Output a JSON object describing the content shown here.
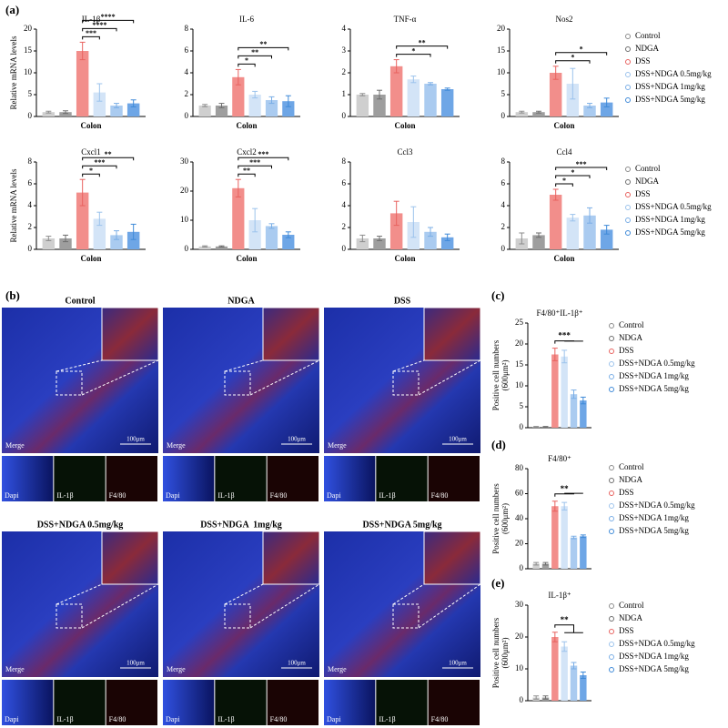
{
  "panel_labels": [
    "(a)",
    "(b)",
    "(c)",
    "(d)",
    "(e)"
  ],
  "legend": [
    {
      "name": "Control",
      "color": "#8c8c8c",
      "fill": "#cfcfcf"
    },
    {
      "name": "NDGA",
      "color": "#6e6e6e",
      "fill": "#9e9e9e"
    },
    {
      "name": "DSS",
      "color": "#e8625f",
      "fill": "#f28e8b"
    },
    {
      "name": "DSS+NDGA 0.5mg/kg",
      "color": "#9cc3ec",
      "fill": "#d3e4f7"
    },
    {
      "name": "DSS+NDGA 1mg/kg",
      "color": "#7aaee6",
      "fill": "#aacbf0"
    },
    {
      "name": "DSS+NDGA 5mg/kg",
      "color": "#3f8ad8",
      "fill": "#6ea6e6"
    }
  ],
  "chart_data": [
    {
      "type": "bar",
      "title": "IL-1β",
      "xlabel": "Colon",
      "ylabel": [
        "Relative mRNA levels"
      ],
      "values": [
        1,
        1,
        15,
        5.5,
        2.5,
        3
      ],
      "errors": [
        0.2,
        0.3,
        2,
        2,
        0.5,
        0.8
      ],
      "ylim": [
        0,
        20
      ],
      "yticks": [
        0,
        5,
        10,
        15,
        20
      ],
      "significance": [
        null,
        null,
        null,
        "***",
        "****",
        "****"
      ]
    },
    {
      "type": "bar",
      "title": "IL-6",
      "xlabel": "Colon",
      "values": [
        1,
        1,
        3.6,
        2,
        1.5,
        1.4
      ],
      "errors": [
        0.1,
        0.2,
        0.7,
        0.3,
        0.3,
        0.5
      ],
      "ylim": [
        0,
        8
      ],
      "yticks": [
        0,
        2,
        4,
        6,
        8
      ],
      "significance": [
        null,
        null,
        null,
        "*",
        "**",
        "**"
      ]
    },
    {
      "type": "bar",
      "title": "TNF-α",
      "xlabel": "Colon",
      "values": [
        1,
        1,
        2.3,
        1.7,
        1.5,
        1.25
      ],
      "errors": [
        0.05,
        0.2,
        0.3,
        0.15,
        0.05,
        0.05
      ],
      "ylim": [
        0,
        4
      ],
      "yticks": [
        0,
        1,
        2,
        3,
        4
      ],
      "significance": [
        null,
        null,
        null,
        null,
        "*",
        "**"
      ]
    },
    {
      "type": "bar",
      "title": "Nos2",
      "xlabel": "Colon",
      "values": [
        1,
        1,
        10,
        7.5,
        2.5,
        3.2
      ],
      "errors": [
        0.2,
        0.2,
        1.5,
        3.5,
        0.5,
        1
      ],
      "ylim": [
        0,
        20
      ],
      "yticks": [
        0,
        5,
        10,
        15,
        20
      ],
      "significance": [
        null,
        null,
        null,
        null,
        "*",
        "*"
      ]
    },
    {
      "type": "bar",
      "title": "Cxcl1",
      "xlabel": "Colon",
      "ylabel": [
        "Relative mRNA levels"
      ],
      "values": [
        1,
        1,
        5.2,
        2.8,
        1.3,
        1.6
      ],
      "errors": [
        0.2,
        0.3,
        1.2,
        0.6,
        0.4,
        0.7
      ],
      "ylim": [
        0,
        8
      ],
      "yticks": [
        0,
        2,
        4,
        6,
        8
      ],
      "significance": [
        null,
        null,
        null,
        "*",
        "***",
        "**"
      ]
    },
    {
      "type": "bar",
      "title": "Cxcl2",
      "xlabel": "Colon",
      "values": [
        1,
        1,
        21,
        10,
        8,
        5
      ],
      "errors": [
        0.2,
        0.2,
        3,
        4,
        0.8,
        1
      ],
      "ylim": [
        0,
        30
      ],
      "yticks": [
        0,
        10,
        20,
        30
      ],
      "significance": [
        null,
        null,
        null,
        "**",
        "***",
        "***"
      ]
    },
    {
      "type": "bar",
      "title": "Ccl3",
      "xlabel": "Colon",
      "values": [
        1,
        1,
        3.3,
        2.5,
        1.6,
        1.1
      ],
      "errors": [
        0.3,
        0.2,
        1.1,
        1.4,
        0.4,
        0.3
      ],
      "ylim": [
        0,
        8
      ],
      "yticks": [
        0,
        2,
        4,
        6,
        8
      ],
      "significance": [
        null,
        null,
        null,
        null,
        null,
        null
      ]
    },
    {
      "type": "bar",
      "title": "Ccl4",
      "xlabel": "Colon",
      "values": [
        1,
        1.3,
        5,
        2.9,
        3.1,
        1.8
      ],
      "errors": [
        0.5,
        0.2,
        0.5,
        0.3,
        0.7,
        0.4
      ],
      "ylim": [
        0,
        8
      ],
      "yticks": [
        0,
        2,
        4,
        6,
        8
      ],
      "significance": [
        null,
        null,
        null,
        "*",
        "*",
        "***"
      ]
    },
    {
      "type": "bar",
      "title": "F4/80⁺IL-1β⁺",
      "ylabel": [
        "Positive cell numbers",
        "(600μm²)"
      ],
      "values": [
        0.2,
        0.2,
        17.5,
        17,
        8,
        6.5
      ],
      "errors": [
        0.1,
        0.1,
        1.5,
        1.5,
        1,
        0.8
      ],
      "ylim": [
        0,
        25
      ],
      "yticks": [
        0,
        5,
        10,
        15,
        20,
        25
      ],
      "significance": "***"
    },
    {
      "type": "bar",
      "title": "F4/80⁺",
      "ylabel": [
        "Positive cell numbers",
        "(600μm²)"
      ],
      "values": [
        4,
        4,
        50,
        50,
        25,
        26
      ],
      "errors": [
        1,
        1,
        4,
        3,
        1,
        1
      ],
      "ylim": [
        0,
        80
      ],
      "yticks": [
        0,
        20,
        40,
        60,
        80
      ],
      "significance": "**"
    },
    {
      "type": "bar",
      "title": "IL-1β⁺",
      "ylabel": [
        "Positive cell numbers",
        "(600μm²)"
      ],
      "values": [
        1,
        1,
        20,
        17,
        11,
        8
      ],
      "errors": [
        0.5,
        0.5,
        1.5,
        1.5,
        1,
        1
      ],
      "ylim": [
        0,
        30
      ],
      "yticks": [
        0,
        10,
        20,
        30
      ],
      "significance": "**"
    }
  ],
  "images": {
    "panels": [
      {
        "title": "Control"
      },
      {
        "title": "NDGA"
      },
      {
        "title": "DSS"
      },
      {
        "title": "DSS+NDGA 0.5mg/kg"
      },
      {
        "title": "DSS+NDGA  1mg/kg"
      },
      {
        "title": "DSS+NDGA 5mg/kg"
      }
    ],
    "merge": "Merge",
    "scale": "100μm",
    "channels": [
      "Dapi",
      "IL-1β",
      "F4/80"
    ]
  }
}
